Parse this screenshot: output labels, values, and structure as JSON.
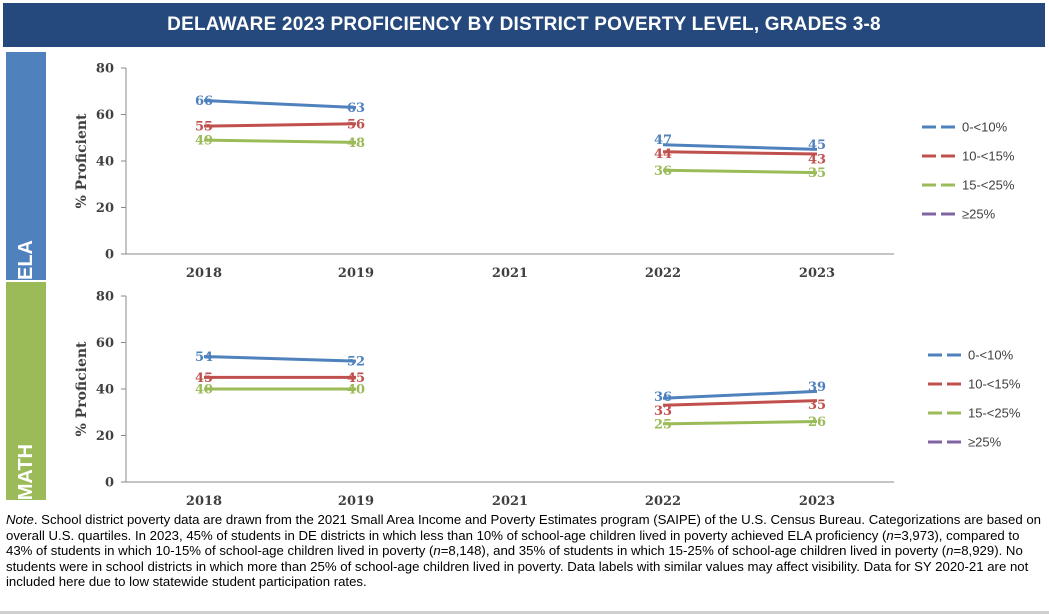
{
  "title": "DELAWARE 2023 PROFICIENCY BY DISTRICT POVERTY LEVEL, GRADES 3-8",
  "colors": {
    "header_bg": "#25497d",
    "ela_tab": "#4f81bd",
    "math_tab": "#9bbb59",
    "series": [
      "#4f81bd",
      "#c0504d",
      "#9bbb59",
      "#8064a2"
    ]
  },
  "chart_data": [
    {
      "type": "line",
      "panel": "ELA",
      "ylabel": "% Proficient",
      "ylim": [
        0,
        80
      ],
      "yticks": [
        "0",
        "20",
        "40",
        "60",
        "80"
      ],
      "categories": [
        "2018",
        "2019",
        "2021",
        "2022",
        "2023"
      ],
      "legend_position": "right",
      "series": [
        {
          "name": "0-<10%",
          "values": [
            66,
            63,
            null,
            47,
            45
          ],
          "labels": [
            "66",
            "63",
            "",
            "47",
            "45"
          ]
        },
        {
          "name": "10-<15%",
          "values": [
            55,
            56,
            null,
            44,
            43
          ],
          "labels": [
            "55",
            "56",
            "",
            "44",
            "43"
          ]
        },
        {
          "name": "15-<25%",
          "values": [
            49,
            48,
            null,
            36,
            35
          ],
          "labels": [
            "49",
            "48",
            "",
            "36",
            "35"
          ]
        },
        {
          "name": "≥25%",
          "values": [
            null,
            null,
            null,
            null,
            null
          ],
          "labels": [
            "",
            "",
            "",
            "",
            ""
          ]
        }
      ]
    },
    {
      "type": "line",
      "panel": "MATH",
      "ylabel": "% Proficient",
      "ylim": [
        0,
        80
      ],
      "yticks": [
        "0",
        "20",
        "40",
        "60",
        "80"
      ],
      "categories": [
        "2018",
        "2019",
        "2021",
        "2022",
        "2023"
      ],
      "legend_position": "right",
      "series": [
        {
          "name": "0-<10%",
          "values": [
            54,
            52,
            null,
            36,
            39
          ],
          "labels": [
            "54",
            "52",
            "",
            "36",
            "39"
          ]
        },
        {
          "name": "10-<15%",
          "values": [
            45,
            45,
            null,
            33,
            35
          ],
          "labels": [
            "45",
            "45",
            "",
            "33",
            "35"
          ]
        },
        {
          "name": "15-<25%",
          "values": [
            40,
            40,
            null,
            25,
            26
          ],
          "labels": [
            "40",
            "40",
            "",
            "25",
            "26"
          ]
        },
        {
          "name": "≥25%",
          "values": [
            null,
            null,
            null,
            null,
            null
          ],
          "labels": [
            "",
            "",
            "",
            "",
            ""
          ]
        }
      ]
    }
  ],
  "note": {
    "lead": "Note",
    "text_1": ". School district poverty data are drawn from the 2021 Small Area Income and Poverty Estimates program (SAIPE) of the U.S. Census Bureau. Categorizations are based on overall U.S. quartiles. In 2023, 45% of students in DE districts in which less than 10% of school-age children lived in poverty achieved ELA proficiency (",
    "n1": "n",
    "text_2": "=3,973), compared to 43% of students in which 10-15% of school-age children lived in poverty (",
    "n2": "n",
    "text_3": "=8,148), and 35% of students in which 15-25% of school-age children lived in poverty (",
    "n3": "n",
    "text_4": "=8,929). No students were in school districts in which more than 25% of school-age children lived in poverty. Data labels with similar values may affect visibility. Data for SY 2020-21 are not included here due to low statewide student participation rates."
  }
}
